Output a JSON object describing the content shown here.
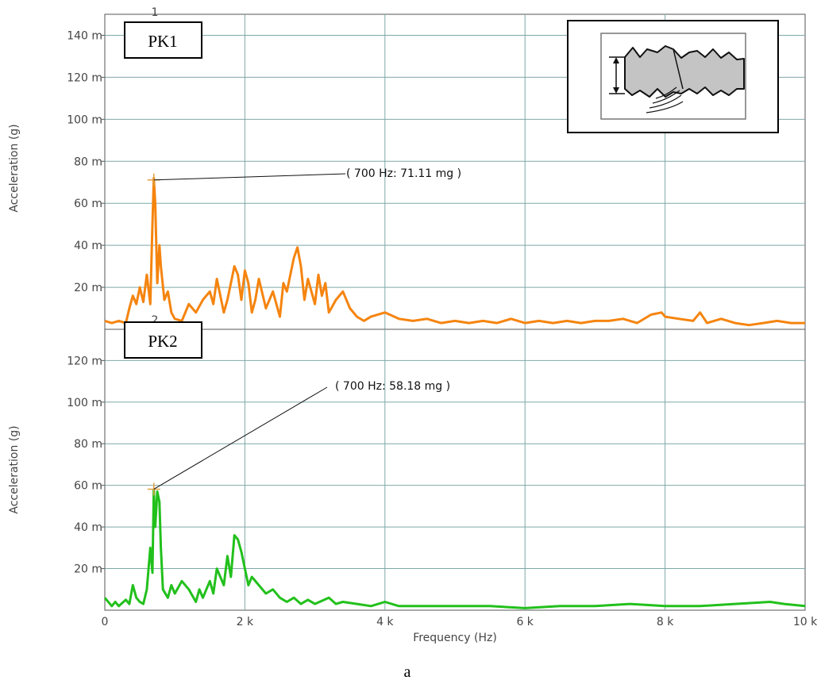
{
  "caption": "a",
  "inset_icon": "crack-wave-icon",
  "chart_data": [
    {
      "type": "line",
      "panel_number": "1",
      "box_label": "PK1",
      "ylabel": "Acceleration (g)",
      "ylim": [
        0,
        0.15
      ],
      "yticks": [
        0.02,
        0.04,
        0.06,
        0.08,
        0.1,
        0.12,
        0.14
      ],
      "ytick_labels": [
        "20 m",
        "40 m",
        "60 m",
        "80 m",
        "100 m",
        "120 m",
        "140 m"
      ],
      "xlim": [
        0,
        10000
      ],
      "grid": true,
      "color": "#f5840f",
      "peak_annotation": {
        "text": "( 700 Hz:  71.11 mg )",
        "x": 700,
        "y": 0.07111
      },
      "series": [
        {
          "x": [
            0,
            100,
            200,
            300,
            350,
            400,
            450,
            500,
            550,
            600,
            650,
            680,
            700,
            720,
            750,
            780,
            800,
            850,
            900,
            950,
            1000,
            1100,
            1200,
            1300,
            1400,
            1500,
            1550,
            1600,
            1650,
            1700,
            1750,
            1800,
            1850,
            1900,
            1950,
            2000,
            2050,
            2100,
            2150,
            2200,
            2300,
            2400,
            2500,
            2550,
            2600,
            2700,
            2750,
            2800,
            2850,
            2900,
            2950,
            3000,
            3050,
            3100,
            3150,
            3200,
            3300,
            3400,
            3500,
            3600,
            3700,
            3800,
            4000,
            4200,
            4400,
            4600,
            4800,
            5000,
            5200,
            5400,
            5600,
            5800,
            6000,
            6200,
            6400,
            6600,
            6800,
            7000,
            7200,
            7400,
            7600,
            7800,
            7950,
            8000,
            8200,
            8400,
            8500,
            8600,
            8800,
            9000,
            9200,
            9400,
            9600,
            9800,
            10000
          ],
          "values": [
            0.004,
            0.003,
            0.004,
            0.003,
            0.01,
            0.016,
            0.012,
            0.02,
            0.013,
            0.026,
            0.012,
            0.05,
            0.072,
            0.06,
            0.022,
            0.04,
            0.03,
            0.014,
            0.018,
            0.008,
            0.005,
            0.004,
            0.012,
            0.008,
            0.014,
            0.018,
            0.012,
            0.024,
            0.016,
            0.008,
            0.014,
            0.022,
            0.03,
            0.026,
            0.014,
            0.028,
            0.022,
            0.008,
            0.014,
            0.024,
            0.01,
            0.018,
            0.006,
            0.022,
            0.018,
            0.034,
            0.039,
            0.03,
            0.014,
            0.024,
            0.018,
            0.012,
            0.026,
            0.016,
            0.022,
            0.008,
            0.014,
            0.018,
            0.01,
            0.006,
            0.004,
            0.006,
            0.008,
            0.005,
            0.004,
            0.005,
            0.003,
            0.004,
            0.003,
            0.004,
            0.003,
            0.005,
            0.003,
            0.004,
            0.003,
            0.004,
            0.003,
            0.004,
            0.004,
            0.005,
            0.003,
            0.007,
            0.008,
            0.006,
            0.005,
            0.004,
            0.008,
            0.003,
            0.005,
            0.003,
            0.002,
            0.003,
            0.004,
            0.003,
            0.003
          ]
        }
      ]
    },
    {
      "type": "line",
      "panel_number": "2",
      "box_label": "PK2",
      "ylabel": "Acceleration (g)",
      "xlabel": "Frequency (Hz)",
      "ylim": [
        0,
        0.135
      ],
      "yticks": [
        0.02,
        0.04,
        0.06,
        0.08,
        0.1,
        0.12
      ],
      "ytick_labels": [
        "20 m",
        "40 m",
        "60 m",
        "80 m",
        "100 m",
        "120 m"
      ],
      "xlim": [
        0,
        10000
      ],
      "xticks": [
        0,
        2000,
        4000,
        6000,
        8000,
        10000
      ],
      "xtick_labels": [
        "0",
        "2 k",
        "4 k",
        "6 k",
        "8 k",
        "10 k"
      ],
      "grid": true,
      "color": "#22c01c",
      "peak_annotation": {
        "text": "( 700 Hz:  58.18 mg )",
        "x": 700,
        "y": 0.05818
      },
      "series": [
        {
          "x": [
            0,
            100,
            150,
            200,
            300,
            350,
            400,
            450,
            500,
            550,
            600,
            650,
            680,
            700,
            720,
            750,
            780,
            800,
            830,
            900,
            950,
            1000,
            1100,
            1200,
            1300,
            1350,
            1400,
            1500,
            1550,
            1600,
            1700,
            1750,
            1800,
            1850,
            1900,
            1950,
            2000,
            2050,
            2100,
            2200,
            2300,
            2400,
            2500,
            2600,
            2700,
            2800,
            2900,
            3000,
            3200,
            3300,
            3400,
            3600,
            3800,
            4000,
            4200,
            4500,
            5000,
            5500,
            6000,
            6500,
            7000,
            7500,
            8000,
            8500,
            9000,
            9500,
            9700,
            10000
          ],
          "values": [
            0.006,
            0.002,
            0.004,
            0.002,
            0.005,
            0.003,
            0.012,
            0.006,
            0.004,
            0.003,
            0.01,
            0.03,
            0.018,
            0.058,
            0.04,
            0.057,
            0.052,
            0.03,
            0.01,
            0.006,
            0.012,
            0.008,
            0.014,
            0.01,
            0.004,
            0.01,
            0.006,
            0.014,
            0.008,
            0.02,
            0.012,
            0.026,
            0.016,
            0.036,
            0.034,
            0.028,
            0.02,
            0.012,
            0.016,
            0.012,
            0.008,
            0.01,
            0.006,
            0.004,
            0.006,
            0.003,
            0.005,
            0.003,
            0.006,
            0.003,
            0.004,
            0.003,
            0.002,
            0.004,
            0.002,
            0.002,
            0.002,
            0.002,
            0.001,
            0.002,
            0.002,
            0.003,
            0.002,
            0.002,
            0.003,
            0.004,
            0.003,
            0.002
          ]
        }
      ]
    }
  ]
}
